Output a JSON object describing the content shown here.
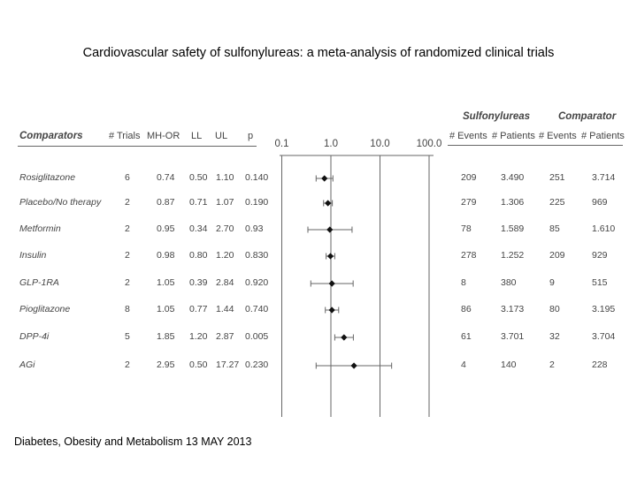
{
  "title": "Cardiovascular safety of sulfonylureas: a meta-analysis of randomized clinical trials",
  "footer": "Diabetes, Obesity and Metabolism 13 MAY 2013",
  "table": {
    "group_headers": {
      "sulfonylureas": "Sulfonylureas",
      "comparator": "Comparator"
    },
    "columns": {
      "comparators": "Comparators",
      "trials": "# Trials",
      "mhor": "MH-OR",
      "ll": "LL",
      "ul": "UL",
      "p": "p",
      "su_events": "# Events",
      "su_patients": "# Patients",
      "comp_events": "# Events",
      "comp_patients": "# Patients"
    }
  },
  "chart_data": {
    "type": "forest",
    "x_scale": "log",
    "x_ticks": [
      "0.1",
      "1.0",
      "10.0",
      "100.0"
    ],
    "xlim": [
      0.1,
      100
    ],
    "reference_line": 1.0,
    "rows": [
      {
        "comparator": "Rosiglitazone",
        "trials": "6",
        "or": "0.74",
        "ll": "0.50",
        "ul": "1.10",
        "p": "0.140",
        "su_events": "209",
        "su_patients": "3.490",
        "comp_events": "251",
        "comp_patients": "3.714"
      },
      {
        "comparator": "Placebo/No therapy",
        "trials": "2",
        "or": "0.87",
        "ll": "0.71",
        "ul": "1.07",
        "p": "0.190",
        "su_events": "279",
        "su_patients": "1.306",
        "comp_events": "225",
        "comp_patients": "969"
      },
      {
        "comparator": "Metformin",
        "trials": "2",
        "or": "0.95",
        "ll": "0.34",
        "ul": "2.70",
        "p": "0.93",
        "su_events": "78",
        "su_patients": "1.589",
        "comp_events": "85",
        "comp_patients": "1.610"
      },
      {
        "comparator": "Insulin",
        "trials": "2",
        "or": "0.98",
        "ll": "0.80",
        "ul": "1.20",
        "p": "0.830",
        "su_events": "278",
        "su_patients": "1.252",
        "comp_events": "209",
        "comp_patients": "929"
      },
      {
        "comparator": "GLP-1RA",
        "trials": "2",
        "or": "1.05",
        "ll": "0.39",
        "ul": "2.84",
        "p": "0.920",
        "su_events": "8",
        "su_patients": "380",
        "comp_events": "9",
        "comp_patients": "515"
      },
      {
        "comparator": "Pioglitazone",
        "trials": "8",
        "or": "1.05",
        "ll": "0.77",
        "ul": "1.44",
        "p": "0.740",
        "su_events": "86",
        "su_patients": "3.173",
        "comp_events": "80",
        "comp_patients": "3.195"
      },
      {
        "comparator": "DPP-4i",
        "trials": "5",
        "or": "1.85",
        "ll": "1.20",
        "ul": "2.87",
        "p": "0.005",
        "su_events": "61",
        "su_patients": "3.701",
        "comp_events": "32",
        "comp_patients": "3.704"
      },
      {
        "comparator": "AGi",
        "trials": "2",
        "or": "2.95",
        "ll": "0.50",
        "ul": "17.27",
        "p": "0.230",
        "su_events": "4",
        "su_patients": "140",
        "comp_events": "2",
        "comp_patients": "228"
      }
    ]
  }
}
